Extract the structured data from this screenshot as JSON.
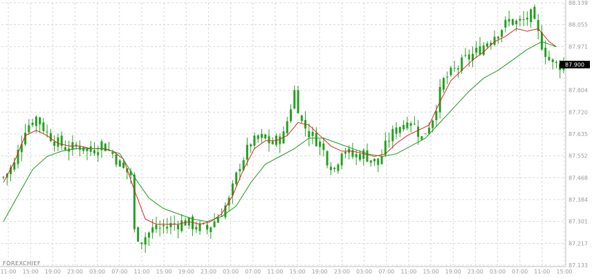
{
  "brand": "FOREXCHIEF",
  "current_price_label": "87.900",
  "colors": {
    "candle": "#22a01e",
    "ma_fast": "#e02020",
    "ma_slow": "#1a9a1a",
    "grid": "#d8d8d8",
    "axis_text": "#9a9a9a"
  },
  "chart_data": {
    "type": "candlestick",
    "title": "",
    "xlabel": "",
    "ylabel": "",
    "ylim": [
      87.133,
      88.139
    ],
    "y_ticks": [
      "88.139",
      "88.055",
      "87.971",
      "87.900",
      "87.804",
      "87.720",
      "87.635",
      "87.552",
      "87.468",
      "87.384",
      "87.301",
      "87.217",
      "87.133"
    ],
    "x_ticks": [
      "11:00",
      "15:00",
      "19:00",
      "23:00",
      "03:00",
      "07:00",
      "11:00",
      "15:00",
      "19:00",
      "23:00",
      "03:00",
      "07:00",
      "11:00",
      "15:00",
      "19:00",
      "23:00",
      "03:00",
      "07:00",
      "11:00",
      "15:00",
      "19:00",
      "23:00",
      "03:00",
      "07:00",
      "11:00",
      "15:00"
    ],
    "grid": true,
    "current_price": 87.9,
    "close_path": [
      [
        0,
        87.47
      ],
      [
        3,
        87.52
      ],
      [
        6,
        87.66
      ],
      [
        9,
        87.7
      ],
      [
        12,
        87.64
      ],
      [
        15,
        87.6
      ],
      [
        18,
        87.58
      ],
      [
        21,
        87.59
      ],
      [
        24,
        87.57
      ],
      [
        27,
        87.6
      ],
      [
        30,
        87.56
      ],
      [
        33,
        87.5
      ],
      [
        35,
        87.48
      ],
      [
        36,
        87.26
      ],
      [
        38,
        87.23
      ],
      [
        41,
        87.27
      ],
      [
        44,
        87.28
      ],
      [
        47,
        87.29
      ],
      [
        50,
        87.3
      ],
      [
        53,
        87.28
      ],
      [
        56,
        87.27
      ],
      [
        59,
        87.32
      ],
      [
        62,
        87.38
      ],
      [
        65,
        87.52
      ],
      [
        68,
        87.6
      ],
      [
        71,
        87.62
      ],
      [
        74,
        87.6
      ],
      [
        77,
        87.63
      ],
      [
        80,
        87.8
      ],
      [
        82,
        87.68
      ],
      [
        84,
        87.64
      ],
      [
        87,
        87.6
      ],
      [
        89,
        87.54
      ],
      [
        91,
        87.5
      ],
      [
        93,
        87.58
      ],
      [
        96,
        87.55
      ],
      [
        99,
        87.56
      ],
      [
        101,
        87.54
      ],
      [
        103,
        87.52
      ],
      [
        106,
        87.62
      ],
      [
        109,
        87.67
      ],
      [
        112,
        87.69
      ],
      [
        115,
        87.62
      ],
      [
        118,
        87.7
      ],
      [
        121,
        87.84
      ],
      [
        124,
        87.88
      ],
      [
        127,
        87.92
      ],
      [
        130,
        87.95
      ],
      [
        133,
        87.99
      ],
      [
        136,
        88.03
      ],
      [
        139,
        88.07
      ],
      [
        142,
        88.06
      ],
      [
        145,
        88.09
      ],
      [
        148,
        87.98
      ],
      [
        150,
        87.92
      ],
      [
        152,
        87.9
      ]
    ],
    "series": [
      {
        "name": "",
        "type": "moving_average",
        "color": "#e02020",
        "points": [
          [
            0,
            87.45
          ],
          [
            3,
            87.53
          ],
          [
            6,
            87.63
          ],
          [
            9,
            87.65
          ],
          [
            12,
            87.63
          ],
          [
            15,
            87.6
          ],
          [
            18,
            87.59
          ],
          [
            21,
            87.59
          ],
          [
            24,
            87.58
          ],
          [
            27,
            87.58
          ],
          [
            30,
            87.57
          ],
          [
            33,
            87.54
          ],
          [
            36,
            87.42
          ],
          [
            39,
            87.31
          ],
          [
            42,
            87.29
          ],
          [
            45,
            87.29
          ],
          [
            48,
            87.29
          ],
          [
            51,
            87.3
          ],
          [
            54,
            87.29
          ],
          [
            57,
            87.3
          ],
          [
            60,
            87.33
          ],
          [
            63,
            87.4
          ],
          [
            66,
            87.5
          ],
          [
            69,
            87.58
          ],
          [
            72,
            87.61
          ],
          [
            75,
            87.61
          ],
          [
            78,
            87.63
          ],
          [
            81,
            87.68
          ],
          [
            84,
            87.67
          ],
          [
            87,
            87.63
          ],
          [
            90,
            87.59
          ],
          [
            93,
            87.57
          ],
          [
            96,
            87.57
          ],
          [
            99,
            87.56
          ],
          [
            102,
            87.55
          ],
          [
            105,
            87.56
          ],
          [
            108,
            87.6
          ],
          [
            111,
            87.63
          ],
          [
            114,
            87.65
          ],
          [
            117,
            87.67
          ],
          [
            120,
            87.76
          ],
          [
            123,
            87.84
          ],
          [
            126,
            87.88
          ],
          [
            129,
            87.92
          ],
          [
            132,
            87.95
          ],
          [
            135,
            87.99
          ],
          [
            138,
            88.01
          ],
          [
            141,
            88.04
          ],
          [
            144,
            88.03
          ],
          [
            147,
            88.04
          ],
          [
            150,
            87.99
          ],
          [
            152,
            87.97
          ]
        ]
      },
      {
        "name": "",
        "type": "moving_average",
        "color": "#1a9a1a",
        "points": [
          [
            0,
            87.3
          ],
          [
            4,
            87.4
          ],
          [
            8,
            87.5
          ],
          [
            12,
            87.55
          ],
          [
            16,
            87.57
          ],
          [
            20,
            87.58
          ],
          [
            24,
            87.58
          ],
          [
            28,
            87.58
          ],
          [
            32,
            87.56
          ],
          [
            36,
            87.47
          ],
          [
            40,
            87.39
          ],
          [
            44,
            87.35
          ],
          [
            48,
            87.33
          ],
          [
            52,
            87.31
          ],
          [
            56,
            87.3
          ],
          [
            60,
            87.32
          ],
          [
            64,
            87.36
          ],
          [
            68,
            87.45
          ],
          [
            72,
            87.52
          ],
          [
            76,
            87.55
          ],
          [
            80,
            87.58
          ],
          [
            84,
            87.62
          ],
          [
            88,
            87.62
          ],
          [
            92,
            87.6
          ],
          [
            96,
            87.58
          ],
          [
            100,
            87.56
          ],
          [
            104,
            87.55
          ],
          [
            108,
            87.56
          ],
          [
            112,
            87.59
          ],
          [
            116,
            87.62
          ],
          [
            120,
            87.68
          ],
          [
            124,
            87.74
          ],
          [
            128,
            87.8
          ],
          [
            132,
            87.85
          ],
          [
            136,
            87.88
          ],
          [
            140,
            87.92
          ],
          [
            144,
            87.96
          ],
          [
            148,
            87.99
          ],
          [
            152,
            87.97
          ]
        ]
      }
    ]
  }
}
